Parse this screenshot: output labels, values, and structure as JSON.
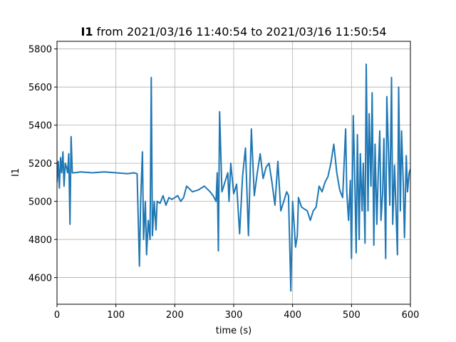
{
  "chart_data": {
    "type": "line",
    "title_bold": "I1",
    "title_rest": " from 2021/03/16 11:40:54 to 2021/03/16 11:50:54",
    "xlabel": "time (s)",
    "ylabel": "I1",
    "xlim": [
      0,
      600
    ],
    "ylim": [
      4460,
      5840
    ],
    "xticks": [
      0,
      100,
      200,
      300,
      400,
      500,
      600
    ],
    "yticks": [
      4600,
      4800,
      5000,
      5200,
      5400,
      5600,
      5800
    ],
    "grid": true,
    "series": [
      {
        "color": "#1f77b4",
        "x": [
          0,
          2,
          4,
          6,
          8,
          10,
          12,
          14,
          16,
          18,
          20,
          22,
          24,
          26,
          30,
          40,
          60,
          80,
          100,
          120,
          130,
          136,
          140,
          142,
          145,
          147,
          150,
          152,
          155,
          158,
          160,
          162,
          165,
          168,
          170,
          175,
          180,
          185,
          190,
          195,
          200,
          205,
          210,
          215,
          220,
          230,
          240,
          250,
          260,
          265,
          270,
          272,
          274,
          276,
          280,
          285,
          290,
          292,
          295,
          300,
          305,
          310,
          315,
          320,
          325,
          330,
          335,
          340,
          345,
          350,
          355,
          360,
          365,
          370,
          375,
          380,
          385,
          390,
          393,
          395,
          397,
          400,
          403,
          405,
          408,
          410,
          415,
          420,
          425,
          430,
          435,
          440,
          445,
          450,
          455,
          460,
          465,
          470,
          475,
          480,
          485,
          490,
          492,
          495,
          498,
          500,
          503,
          505,
          508,
          510,
          513,
          515,
          518,
          520,
          523,
          525,
          528,
          530,
          533,
          535,
          538,
          540,
          543,
          545,
          548,
          550,
          553,
          555,
          558,
          560,
          563,
          565,
          568,
          570,
          573,
          575,
          578,
          580,
          583,
          585,
          588,
          590,
          593,
          595,
          598,
          600
        ],
        "y": [
          5100,
          5210,
          5070,
          5230,
          5150,
          5260,
          5080,
          5200,
          5180,
          5150,
          5250,
          4880,
          5340,
          5150,
          5150,
          5155,
          5150,
          5155,
          5150,
          5145,
          5150,
          5145,
          4660,
          5000,
          5260,
          4800,
          5000,
          4720,
          4900,
          4800,
          5650,
          4820,
          5000,
          4850,
          5000,
          4990,
          5030,
          4980,
          5020,
          5010,
          5020,
          5030,
          5000,
          5020,
          5080,
          5050,
          5060,
          5080,
          5050,
          5030,
          5000,
          5150,
          4740,
          5470,
          5050,
          5100,
          5150,
          5000,
          5200,
          5040,
          5090,
          4830,
          5130,
          5280,
          4820,
          5380,
          5030,
          5150,
          5250,
          5120,
          5180,
          5200,
          5100,
          4980,
          5210,
          4950,
          5000,
          5050,
          5030,
          4790,
          4530,
          5000,
          4860,
          4760,
          4820,
          5020,
          4970,
          4960,
          4950,
          4900,
          4950,
          4970,
          5080,
          5050,
          5100,
          5130,
          5200,
          5300,
          5150,
          5060,
          5020,
          5380,
          5050,
          4900,
          5110,
          4700,
          5450,
          5200,
          4730,
          5350,
          4800,
          5250,
          4950,
          5200,
          4780,
          5720,
          4950,
          5460,
          5080,
          5570,
          4770,
          5300,
          4880,
          5100,
          5370,
          4900,
          5050,
          5330,
          4700,
          5550,
          5240,
          4980,
          5650,
          4880,
          5190,
          5010,
          4720,
          5600,
          4950,
          5370,
          5080,
          4810,
          5240,
          5050,
          5150,
          5170
        ]
      }
    ]
  }
}
